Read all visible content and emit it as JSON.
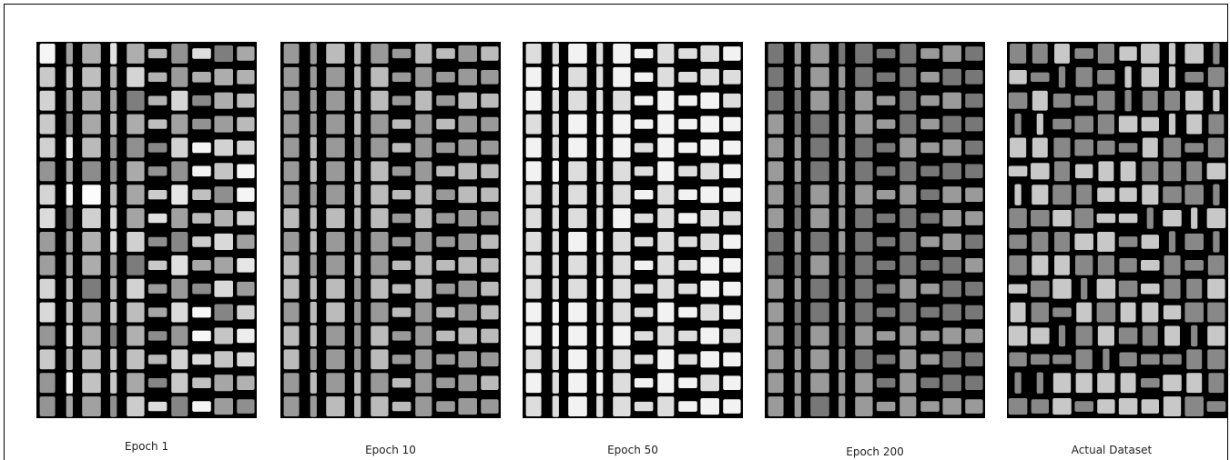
{
  "panels": [
    {
      "caption": "Epoch 1"
    },
    {
      "caption": "Epoch 10"
    },
    {
      "caption": "Epoch 50"
    },
    {
      "caption": "Epoch 200"
    },
    {
      "caption": "Actual Dataset"
    }
  ]
}
